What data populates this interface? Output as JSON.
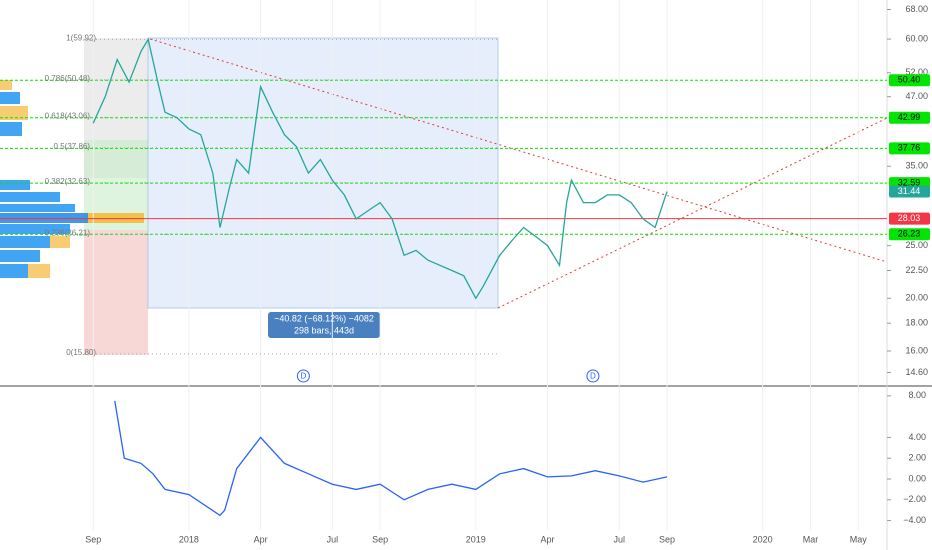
{
  "chart_data": {
    "type": "line",
    "price_axis": {
      "log": true,
      "range": [
        13.85,
        70.8
      ],
      "ticks": [
        {
          "value": 68,
          "label": "68.00"
        },
        {
          "value": 60,
          "label": "60.00"
        },
        {
          "value": 52,
          "label": "52.00"
        },
        {
          "value": 47,
          "label": "47.00"
        },
        {
          "value": 35,
          "label": "35.00"
        },
        {
          "value": 25,
          "label": "25.00"
        },
        {
          "value": 22.5,
          "label": "22.50"
        },
        {
          "value": 20,
          "label": "20.00"
        },
        {
          "value": 18,
          "label": "18.00"
        },
        {
          "value": 16,
          "label": "16.00"
        },
        {
          "value": 14.6,
          "label": "14.60"
        }
      ]
    },
    "levels": [
      {
        "value": 50.4,
        "label": "50.40",
        "color": "#00e600"
      },
      {
        "value": 42.99,
        "label": "42.99",
        "color": "#00e600"
      },
      {
        "value": 37.76,
        "label": "37.76",
        "color": "#00e600"
      },
      {
        "value": 32.59,
        "label": "32.59",
        "color": "#00e600"
      },
      {
        "value": 31.44,
        "label": "31.44",
        "color": "#26a69a"
      },
      {
        "value": 28.03,
        "label": "28.03",
        "color": "#f23645"
      },
      {
        "value": 26.23,
        "label": "26.23",
        "color": "#00e600"
      }
    ],
    "fib": [
      {
        "value": 59.92,
        "label": "1(59.92)"
      },
      {
        "value": 50.48,
        "label": "0.786(50.48)"
      },
      {
        "value": 43.06,
        "label": "0.618(43.06)"
      },
      {
        "value": 37.86,
        "label": "0.5(37.86)"
      },
      {
        "value": 32.63,
        "label": "0.382(32.63)"
      },
      {
        "value": 26.21,
        "label": "0.236(26.21)"
      },
      {
        "value": 15.8,
        "label": "0(15.80)"
      }
    ],
    "time_axis": {
      "range": [
        -3.9,
        33.2
      ],
      "ticks": [
        {
          "value": 0,
          "label": "Sep"
        },
        {
          "value": 4,
          "label": "2018"
        },
        {
          "value": 7,
          "label": "Apr"
        },
        {
          "value": 10,
          "label": "Jul"
        },
        {
          "value": 12,
          "label": "Sep"
        },
        {
          "value": 16,
          "label": "2019"
        },
        {
          "value": 19,
          "label": "Apr"
        },
        {
          "value": 22,
          "label": "Jul"
        },
        {
          "value": 24,
          "label": "Sep"
        },
        {
          "value": 28,
          "label": "2020"
        },
        {
          "value": 30,
          "label": "Mar"
        },
        {
          "value": 32,
          "label": "May"
        }
      ]
    },
    "x": [
      0,
      0.5,
      1,
      1.5,
      2,
      2.3,
      2.7,
      3,
      3.5,
      4,
      4.5,
      5,
      5.3,
      5.7,
      6,
      6.5,
      7,
      7.5,
      8,
      8.5,
      9,
      9.5,
      10,
      10.5,
      11,
      11.5,
      12,
      12.5,
      13,
      13.5,
      14,
      14.5,
      15,
      15.5,
      16,
      16.3,
      17,
      17.5,
      18,
      18.5,
      19,
      19.5,
      19.8,
      20,
      20.5,
      21,
      21.5,
      22,
      22.5,
      23,
      23.5,
      24
    ],
    "values": [
      42,
      47,
      55,
      50,
      57,
      59.9,
      50,
      44,
      43,
      41,
      40,
      34,
      27,
      32,
      36,
      34,
      49,
      44,
      40,
      38,
      34,
      36,
      33,
      31,
      28,
      29,
      30,
      28,
      24,
      24.5,
      23.5,
      23,
      22.5,
      22,
      20,
      21,
      24,
      25.5,
      27,
      26,
      25,
      23,
      30,
      33,
      30,
      30,
      31,
      31,
      30,
      28,
      27,
      31.44
    ],
    "color": "#26a69a",
    "measure": {
      "text": "−40.82 (−68.12%) −4082",
      "detail": "298 bars, 443d"
    },
    "markers": [
      {
        "x": 8.79,
        "label": "D"
      },
      {
        "x": 20.9,
        "label": "D"
      }
    ],
    "macd_axis": {
      "range": [
        -6.83,
        8.85
      ],
      "ticks": [
        {
          "value": 8,
          "label": "8.00"
        },
        {
          "value": 4,
          "label": "4.00"
        },
        {
          "value": 2,
          "label": "2.00"
        },
        {
          "value": 0,
          "label": "0.00"
        },
        {
          "value": -2,
          "label": "−2.00"
        },
        {
          "value": -4,
          "label": "−4.00"
        }
      ]
    },
    "macd": {
      "x": [
        0.9,
        1.3,
        2,
        2.5,
        3,
        4,
        5.3,
        5.5,
        6,
        7,
        8,
        9,
        10,
        11,
        12,
        13,
        14,
        15,
        16,
        17,
        18,
        19,
        20,
        21,
        22,
        23,
        24
      ],
      "values": [
        7.5,
        2,
        1.5,
        0.5,
        -1,
        -1.5,
        -3.5,
        -3,
        1,
        4,
        1.5,
        0.5,
        -0.5,
        -1,
        -0.5,
        -2,
        -1,
        -0.5,
        -1,
        0.5,
        1,
        0.2,
        0.3,
        0.8,
        0.3,
        -0.3,
        0.2
      ],
      "color": "#2962ff"
    }
  }
}
